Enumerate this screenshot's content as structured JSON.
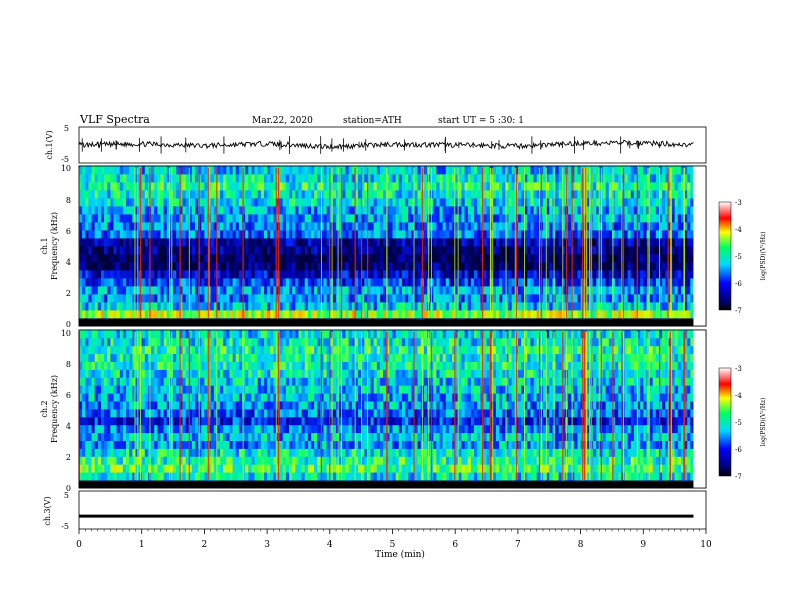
{
  "header": {
    "title": "VLF  Spectra",
    "date": "Mar.22, 2020",
    "station": "station=ATH",
    "start_ut": "start  UT  =   5  :30: 1"
  },
  "panels": {
    "ch1_wave": {
      "ylabel": "ch.1(V)",
      "ticks": [
        "5",
        "-5"
      ]
    },
    "ch1_spec": {
      "ylabel_ch": "ch.1",
      "ylabel": "Frequency  (kHz)",
      "ticks": [
        "10",
        "8",
        "6",
        "4",
        "2",
        "0"
      ]
    },
    "ch2_spec": {
      "ylabel_ch": "ch.2",
      "ylabel": "Frequency  (kHz)",
      "ticks": [
        "10",
        "8",
        "6",
        "4",
        "2",
        "0"
      ]
    },
    "ch3_wave": {
      "ylabel": "ch.3(V)",
      "ticks": [
        "5",
        "-5"
      ]
    }
  },
  "colorbars": [
    {
      "ticks": [
        "-3",
        "-4",
        "-5",
        "-6",
        "-7"
      ],
      "label": "log(PSD)(V²/Hz)"
    },
    {
      "ticks": [
        "-3",
        "-4",
        "-5",
        "-6",
        "-7"
      ],
      "label": "log(PSD)(V²/Hz)"
    }
  ],
  "colors": {
    "low": "#000080",
    "mid": "#00c8ff",
    "high": "#ff0000",
    "background": "#ffffff"
  },
  "chart_data": [
    {
      "type": "line",
      "panel": "ch.1 waveform",
      "ylabel": "ch.1(V)",
      "ylim": [
        -5,
        5
      ],
      "xlim": [
        0,
        10
      ],
      "x": [
        0,
        1,
        2,
        3,
        4,
        5,
        6,
        7,
        8,
        9,
        9.8
      ],
      "y": [
        0,
        0.3,
        -0.2,
        0.4,
        -0.5,
        0.2,
        0,
        -0.3,
        0.5,
        0.6,
        0
      ]
    },
    {
      "type": "heatmap",
      "panel": "ch.1 spectrogram",
      "ylabel": "Frequency  (kHz)",
      "ylim": [
        0,
        10
      ],
      "xlim": [
        0,
        10
      ],
      "data_end_min": 9.8,
      "colorbar": {
        "label": "log(PSD)(V²/Hz)",
        "range": [
          -7,
          -3
        ]
      },
      "frequency_bands_khz": [
        0,
        0.5,
        1,
        1.5,
        2,
        2.5,
        3,
        3.5,
        4,
        4.5,
        5,
        5.5,
        6,
        6.5,
        7,
        7.5,
        8,
        8.5,
        9,
        9.5
      ],
      "log_psd_by_band": [
        -7,
        -4.2,
        -5.2,
        -5.5,
        -5.4,
        -5.8,
        -6.2,
        -6.8,
        -6.9,
        -6.6,
        -6.4,
        -5.6,
        -5.5,
        -5.4,
        -5.3,
        -5.1,
        -5.0,
        -4.8,
        -5.0,
        -5.2
      ]
    },
    {
      "type": "heatmap",
      "panel": "ch.2 spectrogram",
      "ylabel": "Frequency  (kHz)",
      "ylim": [
        0,
        10
      ],
      "xlim": [
        0,
        10
      ],
      "data_end_min": 9.8,
      "colorbar": {
        "label": "log(PSD)(V²/Hz)",
        "range": [
          -7,
          -3
        ]
      },
      "frequency_bands_khz": [
        0,
        0.5,
        1,
        1.5,
        2,
        2.5,
        3,
        3.5,
        4,
        4.5,
        5,
        5.5,
        6,
        6.5,
        7,
        7.5,
        8,
        8.5,
        9,
        9.5
      ],
      "log_psd_by_band": [
        -7,
        -5.0,
        -4.6,
        -4.8,
        -5.0,
        -5.4,
        -5.2,
        -5.5,
        -5.9,
        -5.6,
        -5.4,
        -5.3,
        -5.2,
        -5.1,
        -5.0,
        -4.9,
        -4.9,
        -4.8,
        -5.0,
        -5.1
      ]
    },
    {
      "type": "line",
      "panel": "ch.3 waveform",
      "ylabel": "ch.3(V)",
      "ylim": [
        -5,
        5
      ],
      "xlim": [
        0,
        10
      ],
      "x": [
        0,
        9.8
      ],
      "y": [
        -1.6,
        -1.6
      ]
    },
    {
      "type": "axis",
      "xlabel": "Time  (min)",
      "xlim": [
        0,
        10
      ],
      "xticks": [
        "0",
        "1",
        "2",
        "3",
        "4",
        "5",
        "6",
        "7",
        "8",
        "9",
        "10"
      ]
    }
  ]
}
